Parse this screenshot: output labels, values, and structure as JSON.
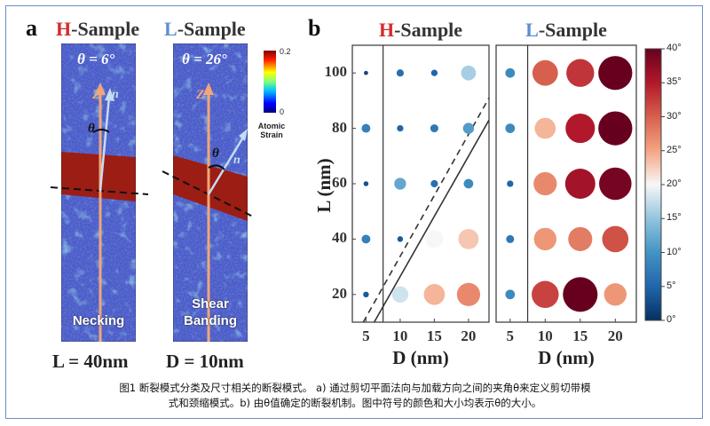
{
  "figure": {
    "panel_a_letter": "a",
    "panel_b_letter": "b",
    "caption_line1": "图1 断裂模式分类及尺寸相关的断裂模式。 a) 通过剪切平面法向与加载方向之间的夹角θ来定义剪切带模",
    "caption_line2": "式和颈缩模式。b) 由θ值确定的断裂机制。图中符号的颜色和大小均表示θ的大小。"
  },
  "panel_a": {
    "h_prefix": "H",
    "l_prefix": "L",
    "sample_suffix": "-Sample",
    "h_theta": "θ = 6°",
    "l_theta": "θ = 26°",
    "h_overlay": "Necking",
    "l_overlay_line1": "Shear",
    "l_overlay_line2": "Banding",
    "h_bottom": "L = 40nm",
    "l_bottom": "D = 10nm",
    "z_label": "Z",
    "n_label": "n",
    "theta_symbol": "θ",
    "colorbar_max": "0.2",
    "colorbar_min": "0",
    "colorbar_label_line1": "Atomic",
    "colorbar_label_line2": "Strain"
  },
  "chart_data": {
    "type": "scatter",
    "subplots": [
      {
        "title_prefix": "H",
        "title_suffix": "-Sample",
        "x": [
          5,
          10,
          15,
          20
        ]
      },
      {
        "title_prefix": "L",
        "title_suffix": "-Sample",
        "x": [
          5,
          10,
          15,
          20
        ]
      }
    ],
    "x_tick_labels": [
      "5",
      "10",
      "15",
      "20"
    ],
    "y_tick_labels": [
      "20",
      "40",
      "60",
      "80",
      "100"
    ],
    "xlabel": "D (nm)",
    "ylabel": "L (nm)",
    "xlim": [
      3,
      23
    ],
    "ylim": [
      10,
      110
    ],
    "points_h": [
      {
        "D": 5,
        "L": 100,
        "theta": 2
      },
      {
        "D": 10,
        "L": 100,
        "theta": 6
      },
      {
        "D": 15,
        "L": 100,
        "theta": 5
      },
      {
        "D": 20,
        "L": 100,
        "theta": 16
      },
      {
        "D": 5,
        "L": 80,
        "theta": 8
      },
      {
        "D": 10,
        "L": 80,
        "theta": 5
      },
      {
        "D": 15,
        "L": 80,
        "theta": 7
      },
      {
        "D": 20,
        "L": 80,
        "theta": 11
      },
      {
        "D": 5,
        "L": 60,
        "theta": 3
      },
      {
        "D": 10,
        "L": 60,
        "theta": 12
      },
      {
        "D": 15,
        "L": 60,
        "theta": 6
      },
      {
        "D": 20,
        "L": 60,
        "theta": 9
      },
      {
        "D": 5,
        "L": 40,
        "theta": 8
      },
      {
        "D": 10,
        "L": 40,
        "theta": 4
      },
      {
        "D": 15,
        "L": 40,
        "theta": 20
      },
      {
        "D": 20,
        "L": 40,
        "theta": 23
      },
      {
        "D": 5,
        "L": 20,
        "theta": 4
      },
      {
        "D": 10,
        "L": 20,
        "theta": 18
      },
      {
        "D": 15,
        "L": 20,
        "theta": 24
      },
      {
        "D": 20,
        "L": 20,
        "theta": 27
      }
    ],
    "points_l": [
      {
        "D": 5,
        "L": 100,
        "theta": 9
      },
      {
        "D": 10,
        "L": 100,
        "theta": 30
      },
      {
        "D": 15,
        "L": 100,
        "theta": 33
      },
      {
        "D": 20,
        "L": 100,
        "theta": 41
      },
      {
        "D": 5,
        "L": 80,
        "theta": 9
      },
      {
        "D": 10,
        "L": 80,
        "theta": 24
      },
      {
        "D": 15,
        "L": 80,
        "theta": 35
      },
      {
        "D": 20,
        "L": 80,
        "theta": 41
      },
      {
        "D": 5,
        "L": 60,
        "theta": 5
      },
      {
        "D": 10,
        "L": 60,
        "theta": 27
      },
      {
        "D": 15,
        "L": 60,
        "theta": 36
      },
      {
        "D": 20,
        "L": 60,
        "theta": 39
      },
      {
        "D": 5,
        "L": 40,
        "theta": 7
      },
      {
        "D": 10,
        "L": 40,
        "theta": 26
      },
      {
        "D": 15,
        "L": 40,
        "theta": 28
      },
      {
        "D": 20,
        "L": 40,
        "theta": 31
      },
      {
        "D": 5,
        "L": 20,
        "theta": 9
      },
      {
        "D": 10,
        "L": 20,
        "theta": 32
      },
      {
        "D": 15,
        "L": 20,
        "theta": 42
      },
      {
        "D": 20,
        "L": 20,
        "theta": 26
      }
    ],
    "boundary_solid": [
      [
        6.2,
        10
      ],
      [
        23,
        83
      ]
    ],
    "boundary_dashed": [
      [
        4.6,
        10
      ],
      [
        23,
        91
      ]
    ],
    "colorbar": {
      "min": 0,
      "max": 40,
      "tick_values": [
        0,
        5,
        10,
        15,
        20,
        25,
        30,
        35,
        40
      ],
      "tick_labels": [
        "0°",
        "5°",
        "10°",
        "15°",
        "20°",
        "25°",
        "30°",
        "35°",
        "40°"
      ],
      "colors": [
        "#053061",
        "#2166ac",
        "#4393c3",
        "#92c5de",
        "#f7f7f7",
        "#f4a582",
        "#d6604d",
        "#b2182b",
        "#67001f"
      ]
    }
  }
}
